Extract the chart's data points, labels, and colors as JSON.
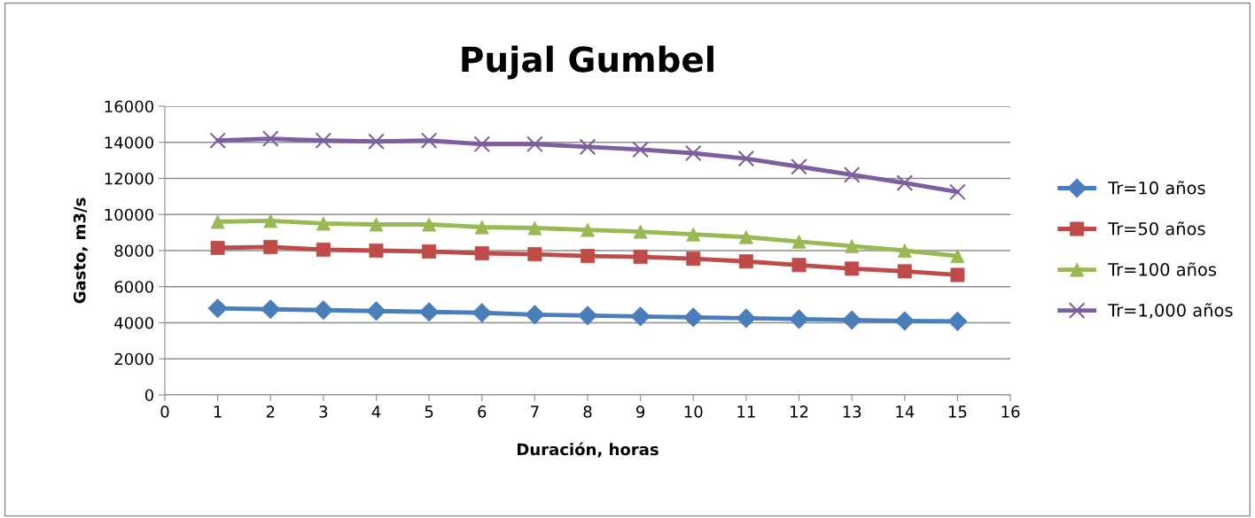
{
  "chart_data": {
    "type": "line",
    "title": "Pujal Gumbel",
    "xlabel": "Duración, horas",
    "ylabel": "Gasto, m3/s",
    "x": [
      1,
      2,
      3,
      4,
      5,
      6,
      7,
      8,
      9,
      10,
      11,
      12,
      13,
      14,
      15
    ],
    "series": [
      {
        "name": "Tr=10 años",
        "color": "#4a7ebb",
        "marker": "diamond",
        "values": [
          4800,
          4750,
          4700,
          4650,
          4600,
          4550,
          4450,
          4400,
          4350,
          4300,
          4250,
          4200,
          4150,
          4100,
          4080
        ]
      },
      {
        "name": "Tr=50 años",
        "color": "#be4b48",
        "marker": "square",
        "values": [
          8150,
          8200,
          8050,
          8000,
          7950,
          7850,
          7800,
          7700,
          7650,
          7550,
          7400,
          7200,
          7000,
          6850,
          6650
        ]
      },
      {
        "name": "Tr=100 años",
        "color": "#98b954",
        "marker": "triangle",
        "values": [
          9600,
          9650,
          9500,
          9450,
          9450,
          9300,
          9250,
          9150,
          9050,
          8900,
          8750,
          8500,
          8250,
          8000,
          7700
        ]
      },
      {
        "name": "Tr=1,000 años",
        "color": "#7d5fa0",
        "marker": "cross",
        "values": [
          14100,
          14200,
          14100,
          14050,
          14100,
          13900,
          13900,
          13750,
          13600,
          13400,
          13100,
          12650,
          12200,
          11750,
          11250
        ]
      }
    ],
    "xlim": [
      0,
      16
    ],
    "xticks": [
      0,
      1,
      2,
      3,
      4,
      5,
      6,
      7,
      8,
      9,
      10,
      11,
      12,
      13,
      14,
      15,
      16
    ],
    "ylim": [
      0,
      16000
    ],
    "yticks": [
      0,
      2000,
      4000,
      6000,
      8000,
      10000,
      12000,
      14000,
      16000
    ],
    "grid": "y",
    "legend": "right",
    "line_style": "solid"
  }
}
